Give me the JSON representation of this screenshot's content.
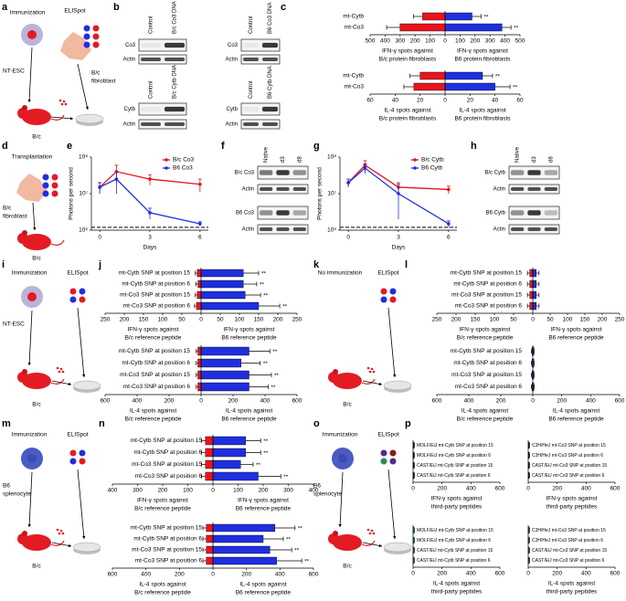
{
  "panel_labels": [
    "a",
    "b",
    "c",
    "d",
    "e",
    "f",
    "g",
    "h",
    "i",
    "j",
    "k",
    "l",
    "m",
    "n",
    "o",
    "p"
  ],
  "diagrams": {
    "a": [
      "Immunization",
      "ELISpot",
      "NT-ESC",
      "B/c",
      "fibroblast",
      "B/c"
    ],
    "d": [
      "Transplantation",
      "B/c",
      "fibroblast",
      "B/c"
    ],
    "i": [
      "Immunization",
      "ELISpot",
      "NT-ESC",
      "B/c"
    ],
    "k": [
      "No immunization",
      "ELISpot",
      "B/c"
    ],
    "m": [
      "Immunization",
      "ELISpot",
      "B6",
      "splenocyte",
      "B/c"
    ],
    "o": [
      "Immunization",
      "ELISpot",
      "B6",
      "splenocyte",
      "B/c"
    ]
  },
  "blots": {
    "b": [
      {
        "columns": [
          "Control",
          "B/c Co3 DNA"
        ],
        "rows": [
          "Co3",
          "Actin"
        ]
      },
      {
        "columns": [
          "Control",
          "B6 Co3 DNA"
        ],
        "rows": [
          "Co3",
          "Actin"
        ]
      },
      {
        "columns": [
          "Control",
          "B/c Cytb DNA"
        ],
        "rows": [
          "Cytb",
          "Actin"
        ]
      },
      {
        "columns": [
          "Control",
          "B6 Cytb DNA"
        ],
        "rows": [
          "Cytb",
          "Actin"
        ]
      }
    ],
    "f": [
      {
        "columns": [
          "Native",
          "d3",
          "d8"
        ],
        "rows": [
          "B/c Co3",
          "Actin",
          "B6 Co3",
          "Actin"
        ]
      }
    ],
    "h": [
      {
        "columns": [
          "Native",
          "d3",
          "d8"
        ],
        "rows": [
          "B/c Cytb",
          "Actin",
          "B6 Cytb",
          "Actin"
        ]
      }
    ]
  },
  "chart_data": [
    {
      "type": "butterfly",
      "categories": [
        "mt-Cytb",
        "mt-Co3"
      ],
      "annotations": [
        "**",
        "**"
      ],
      "left": {
        "xlim": [
          500,
          0
        ],
        "xticks": [
          500,
          400,
          300,
          200,
          100,
          0
        ],
        "values": [
          150,
          300
        ],
        "errors": [
          60,
          90
        ],
        "color": "#e8141b",
        "xlabel": [
          "IFN-γ spots against",
          "B/c protein fibroblasts"
        ]
      },
      "right": {
        "xlim": [
          0,
          500
        ],
        "xticks": [
          100,
          200,
          300,
          400,
          500
        ],
        "values": [
          180,
          380
        ],
        "errors": [
          60,
          60
        ],
        "color": "#1f2fe0",
        "xlabel": [
          "IFN-γ spots against",
          "B6 protein fibroblasts"
        ]
      }
    },
    {
      "type": "butterfly",
      "categories": [
        "mt-Cytb",
        "mt-Co3"
      ],
      "annotations": [
        "**",
        "**"
      ],
      "left": {
        "xlim": [
          60,
          0
        ],
        "xticks": [
          60,
          40,
          20,
          0
        ],
        "values": [
          20,
          25
        ],
        "errors": [
          8,
          8
        ],
        "color": "#e8141b",
        "xlabel": [
          "IL-4 spots against",
          "B/c protein fibroblasts"
        ]
      },
      "right": {
        "xlim": [
          0,
          60
        ],
        "xticks": [
          20,
          40,
          60
        ],
        "values": [
          30,
          40
        ],
        "errors": [
          8,
          12
        ],
        "color": "#1f2fe0",
        "xlabel": [
          "IL-4 spots against",
          "B6 protein fibroblasts"
        ]
      }
    },
    {
      "type": "line",
      "x": [
        0,
        1,
        3,
        6
      ],
      "xlim": [
        -0.5,
        6.5
      ],
      "xticks": [
        0,
        3,
        6
      ],
      "xlabel": "Days",
      "ylabel": "Photons per second",
      "log": true,
      "ylim": [
        1000000,
        100000000
      ],
      "yticks": [
        {
          "value": 1000000,
          "label": "10⁶"
        },
        {
          "value": 10000000,
          "label": "10⁷"
        },
        {
          "value": 100000000,
          "label": "10⁸"
        }
      ],
      "reference_line": 1200000,
      "legend": "upper right",
      "series": [
        {
          "name": "B/c Co3",
          "color": "#e8141b",
          "values": [
            15000000,
            40000000,
            25000000,
            18000000
          ],
          "errors": [
            5000000,
            20000000,
            8000000,
            7000000
          ]
        },
        {
          "name": "B6 Co3",
          "color": "#1f2fe0",
          "values": [
            15000000,
            25000000,
            3000000,
            1500000
          ],
          "errors": [
            5000000,
            15000000,
            1000000,
            200000
          ]
        }
      ]
    },
    {
      "type": "line",
      "x": [
        0,
        1,
        3,
        6
      ],
      "xlim": [
        -0.5,
        6.5
      ],
      "xticks": [
        0,
        3,
        6
      ],
      "xlabel": "Days",
      "ylabel": "Photons per second",
      "log": true,
      "ylim": [
        1000000,
        100000000
      ],
      "yticks": [
        {
          "value": 1000000,
          "label": "10⁶"
        },
        {
          "value": 10000000,
          "label": "10⁷"
        },
        {
          "value": 100000000,
          "label": "10⁸"
        }
      ],
      "reference_line": 1200000,
      "legend": "upper right",
      "series": [
        {
          "name": "B/c Cytb",
          "color": "#e8141b",
          "values": [
            20000000,
            60000000,
            15000000,
            13000000
          ],
          "errors": [
            5000000,
            20000000,
            5000000,
            3000000
          ]
        },
        {
          "name": "B6 Cytb",
          "color": "#1f2fe0",
          "values": [
            20000000,
            50000000,
            10000000,
            1500000
          ],
          "errors": [
            5000000,
            15000000,
            8000000,
            300000
          ]
        }
      ]
    },
    {
      "type": "butterfly",
      "categories": [
        "mt-Cytb SNP at position 15",
        "mt-Cytb SNP at position 6",
        "mt-Co3 SNP at position 15",
        "mt-Co3 SNP at position 6"
      ],
      "annotations": [
        "**",
        "**",
        "**",
        "**"
      ],
      "left": {
        "xlim": [
          250,
          0
        ],
        "xticks": [
          250,
          200,
          150,
          100,
          50,
          0
        ],
        "values": [
          10,
          8,
          10,
          12
        ],
        "errors": [
          5,
          5,
          5,
          5
        ],
        "color": "#e8141b",
        "xlabel": [
          "IFN-γ spots against",
          "B/c reference peptide"
        ]
      },
      "right": {
        "xlim": [
          0,
          250
        ],
        "xticks": [
          50,
          100,
          150,
          200,
          250
        ],
        "values": [
          110,
          110,
          115,
          150
        ],
        "errors": [
          40,
          35,
          40,
          55
        ],
        "color": "#1f2fe0",
        "xlabel": [
          "IFN-γ spots against",
          "B6 reference peptide"
        ]
      }
    },
    {
      "type": "butterfly",
      "categories": [
        "mt-Cytb SNP at position 15",
        "mt-Cytb SNP at position 6",
        "mt-Co3 SNP at position 15",
        "mt-Co3 SNP at position 6"
      ],
      "annotations": [
        "**",
        "**",
        "**",
        "**"
      ],
      "left": {
        "xlim": [
          600,
          0
        ],
        "xticks": [
          600,
          400,
          200,
          0
        ],
        "values": [
          20,
          20,
          20,
          20
        ],
        "errors": [
          10,
          10,
          10,
          10
        ],
        "color": "#e8141b",
        "xlabel": [
          "IL-4 spots against",
          "B/c reference peptide"
        ]
      },
      "right": {
        "xlim": [
          0,
          600
        ],
        "xticks": [
          200,
          400,
          600
        ],
        "values": [
          300,
          250,
          300,
          300
        ],
        "errors": [
          130,
          120,
          140,
          120
        ],
        "color": "#1f2fe0",
        "xlabel": [
          "IL-4 spots against",
          "B6 reference peptide"
        ]
      }
    },
    {
      "type": "butterfly",
      "categories": [
        "mt-Cytb SNP at position 15",
        "mt-Cytb SNP at position 6",
        "mt-Co3 SNP at position 15",
        "mt-Co3 SNP at position 6"
      ],
      "left": {
        "xlim": [
          250,
          0
        ],
        "xticks": [
          250,
          200,
          150,
          100,
          50,
          0
        ],
        "values": [
          8,
          8,
          8,
          8
        ],
        "errors": [
          6,
          6,
          6,
          6
        ],
        "color": "#e8141b",
        "xlabel": [
          "IFN-γ spots against",
          "B/c reference peptide"
        ]
      },
      "right": {
        "xlim": [
          0,
          250
        ],
        "xticks": [
          50,
          100,
          150,
          200,
          250
        ],
        "values": [
          10,
          10,
          10,
          10
        ],
        "errors": [
          8,
          8,
          8,
          8
        ],
        "color": "#1f2fe0",
        "xlabel": [
          "IFN-γ spots against",
          "B6 reference peptide"
        ]
      }
    },
    {
      "type": "butterfly",
      "categories": [
        "mt-Cytb SNP at position 15",
        "mt-Cytb SNP at position 6",
        "mt-Co3 SNP at position 15",
        "mt-Co3 SNP at position 6"
      ],
      "left": {
        "xlim": [
          600,
          0
        ],
        "xticks": [
          600,
          400,
          200,
          0
        ],
        "values": [
          5,
          5,
          5,
          5
        ],
        "errors": [
          4,
          4,
          4,
          4
        ],
        "color": "#e8141b",
        "xlabel": [
          "IL-4 spots against",
          "B/c reference peptide"
        ]
      },
      "right": {
        "xlim": [
          0,
          600
        ],
        "xticks": [
          200,
          400,
          600
        ],
        "values": [
          5,
          5,
          5,
          5
        ],
        "errors": [
          4,
          4,
          4,
          4
        ],
        "color": "#1f2fe0",
        "xlabel": [
          "IL-4 spots against",
          "B6 reference peptide"
        ]
      }
    },
    {
      "type": "butterfly",
      "categories": [
        "mt-Cytb SNP at position 15",
        "mt-Cytb SNP at position 6",
        "mt-Co3 SNP at position 15",
        "mt-Co3 SNP at position 6"
      ],
      "annotations": [
        "**",
        "**",
        "**",
        "**"
      ],
      "left": {
        "xlim": [
          400,
          0
        ],
        "xticks": [
          400,
          300,
          200,
          100,
          0
        ],
        "values": [
          30,
          30,
          30,
          30
        ],
        "errors": [
          15,
          15,
          15,
          15
        ],
        "color": "#e8141b",
        "xlabel": [
          "IFN-γ spots against",
          "B/c reference peptide"
        ]
      },
      "right": {
        "xlim": [
          0,
          400
        ],
        "xticks": [
          100,
          200,
          300,
          400
        ],
        "values": [
          130,
          130,
          110,
          180
        ],
        "errors": [
          60,
          60,
          50,
          90
        ],
        "color": "#1f2fe0",
        "xlabel": [
          "IFN-γ spots against",
          "B6 reference peptide"
        ]
      }
    },
    {
      "type": "butterfly",
      "categories": [
        "mt-Cytb SNP at position 15",
        "mt-Cytb SNP at position 6",
        "mt-Co3 SNP at position 15",
        "mt-Co3 SNP at position 6"
      ],
      "annotations": [
        "**",
        "**",
        "**",
        "**"
      ],
      "left": {
        "xlim": [
          600,
          0
        ],
        "xticks": [
          600,
          400,
          200,
          0
        ],
        "values": [
          40,
          40,
          40,
          40
        ],
        "errors": [
          20,
          20,
          20,
          20
        ],
        "color": "#e8141b",
        "xlabel": [
          "IL-4 spots against",
          "B/c reference peptide"
        ]
      },
      "right": {
        "xlim": [
          0,
          600
        ],
        "xticks": [
          200,
          400,
          600
        ],
        "values": [
          370,
          300,
          340,
          380
        ],
        "errors": [
          120,
          120,
          130,
          150
        ],
        "color": "#1f2fe0",
        "xlabel": [
          "IL-4 spots against",
          "B6 reference peptide"
        ]
      }
    },
    {
      "type": "butterfly",
      "categories": [
        "MOLF/EiJ mt-Cytb SNP at position 15",
        "MOLF/EiJ mt-Cytb SNP at position 6",
        "CAST/EiJ mt-Cytb SNP at position 15",
        "CAST/EiJ mt-Cytb SNP at position 6"
      ],
      "right": {
        "xlim": [
          0,
          600
        ],
        "xticks": [
          0,
          200,
          400,
          600
        ],
        "values": [
          5,
          5,
          5,
          5
        ],
        "errors": [
          4,
          4,
          4,
          4
        ],
        "color": "#222222",
        "xlabel": [
          "IFN-γ spots against",
          "third-party peptides"
        ]
      }
    },
    {
      "type": "butterfly",
      "categories": [
        "C3H/HeJ mt-Co3 SNP at position 15",
        "C3H/HeJ mt-Co3 SNP at position 6",
        "CAST/EiJ mt-Co3 SNP at position 15",
        "CAST/EiJ mt-Co3 SNP at position 6"
      ],
      "right": {
        "xlim": [
          0,
          600
        ],
        "xticks": [
          0,
          200,
          400,
          600
        ],
        "values": [
          5,
          5,
          5,
          5
        ],
        "errors": [
          4,
          4,
          4,
          4
        ],
        "color": "#222222",
        "xlabel": [
          "IFN-γ spots against",
          "third-party peptides"
        ]
      }
    },
    {
      "type": "butterfly",
      "categories": [
        "MOLF/EiJ mt-Cytb SNP at position 15",
        "MOLF/EiJ mt-Cytb SNP at position 6",
        "CAST/EiJ mt-Cytb SNP at position 15",
        "CAST/EiJ mt-Cytb SNP at position 6"
      ],
      "right": {
        "xlim": [
          0,
          600
        ],
        "xticks": [
          0,
          200,
          400,
          600
        ],
        "values": [
          5,
          5,
          5,
          5
        ],
        "errors": [
          4,
          4,
          4,
          4
        ],
        "color": "#2e8b57",
        "xlabel": [
          "IL-4 spots against",
          "third-party peptides"
        ]
      }
    },
    {
      "type": "butterfly",
      "categories": [
        "C3H/HeJ mt-Co3 SNP at position 15",
        "C3H/HeJ mt-Co3 SNP at position 6",
        "CAST/EiJ mt-Co3 SNP at position 15",
        "CAST/EiJ mt-Co3 SNP at position 6"
      ],
      "right": {
        "xlim": [
          0,
          600
        ],
        "xticks": [
          0,
          200,
          400,
          600
        ],
        "values": [
          5,
          5,
          5,
          5
        ],
        "errors": [
          4,
          4,
          4,
          4
        ],
        "color": "#7b2d8e",
        "xlabel": [
          "IL-4 spots against",
          "third-party peptides"
        ]
      }
    }
  ]
}
